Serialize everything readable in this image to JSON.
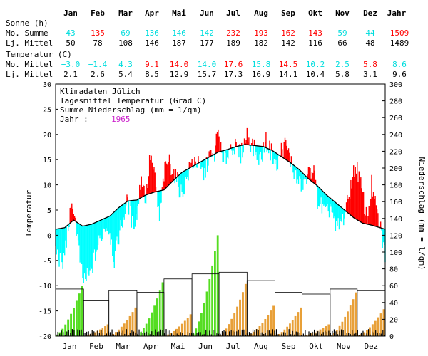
{
  "colors": {
    "above": "#ff0000",
    "below": "#00ffff",
    "precip_low": "#e8a038",
    "precip_high": "#55dd22",
    "daily_precip": "#000000",
    "year_label": "#cc22cc",
    "text": "#000000"
  },
  "header": {
    "months": [
      "Jan",
      "Feb",
      "Mar",
      "Apr",
      "Mai",
      "Jun",
      "Jul",
      "Aug",
      "Sep",
      "Okt",
      "Nov",
      "Dez"
    ],
    "year_col": "Jahr",
    "sun_title": "Sonne (h)",
    "sun_month_label": "Mo. Summe",
    "sun_month": [
      "43",
      "135",
      "69",
      "136",
      "146",
      "142",
      "232",
      "193",
      "162",
      "143",
      "59",
      "44"
    ],
    "sun_month_total": "1509",
    "sun_month_colors": [
      "#00dddd",
      "#ff0000",
      "#00dddd",
      "#00dddd",
      "#00dddd",
      "#00dddd",
      "#ff0000",
      "#ff0000",
      "#ff0000",
      "#ff0000",
      "#00dddd",
      "#00dddd"
    ],
    "sun_year_color": "#ff0000",
    "sun_mean_label": "Lj. Mittel",
    "sun_mean": [
      "50",
      "78",
      "108",
      "146",
      "187",
      "177",
      "189",
      "182",
      "142",
      "116",
      "66",
      "48"
    ],
    "sun_mean_total": "1489",
    "temp_title": "Temperatur (C)",
    "temp_month_label": "Mo. Mittel",
    "temp_month": [
      "−3.0",
      "−1.4",
      "4.3",
      "9.1",
      "14.0",
      "14.0",
      "17.6",
      "15.8",
      "14.5",
      "10.2",
      "2.5",
      "5.8"
    ],
    "temp_month_total": "8.6",
    "temp_month_colors": [
      "#00dddd",
      "#00dddd",
      "#00dddd",
      "#ff0000",
      "#ff0000",
      "#00dddd",
      "#ff0000",
      "#00dddd",
      "#ff0000",
      "#00dddd",
      "#00dddd",
      "#ff0000"
    ],
    "temp_year_color": "#00dddd",
    "temp_mean_label": "Lj. Mittel",
    "temp_mean": [
      "2.1",
      "2.6",
      "5.4",
      "8.5",
      "12.9",
      "15.7",
      "17.3",
      "16.9",
      "14.1",
      "10.4",
      "5.8",
      "3.1"
    ],
    "temp_mean_total": "9.6"
  },
  "chart_data": {
    "type": "area",
    "legend": {
      "line1": "Klimadaten Jülich",
      "line2": "Tagesmittel Temperatur (Grad C)",
      "line3": "Summe Niederschlag (mm = l/qm)",
      "year_label": "Jahr :",
      "year": "1965"
    },
    "ylabel_left": "Temperatur",
    "ylabel_right": "Niederschlag (mm = l/qm)",
    "ylim_left": [
      -20,
      30
    ],
    "ylim_right": [
      0,
      300
    ],
    "yticks_left": [
      30,
      25,
      20,
      15,
      10,
      5,
      0,
      -5,
      -10,
      -15,
      -20
    ],
    "yticks_right": [
      300,
      280,
      260,
      240,
      220,
      200,
      180,
      160,
      140,
      120,
      100,
      80,
      60,
      40,
      20,
      0
    ],
    "xlabels": [
      "Jan",
      "Feb",
      "Mar",
      "Apr",
      "Mai",
      "Jun",
      "Jul",
      "Aug",
      "Sep",
      "Okt",
      "Nov",
      "Dez"
    ],
    "long_term_temp_anchors": [
      [
        0,
        1.2
      ],
      [
        10,
        1.5
      ],
      [
        20,
        3.0
      ],
      [
        30,
        1.8
      ],
      [
        40,
        2.2
      ],
      [
        50,
        3.0
      ],
      [
        60,
        3.8
      ],
      [
        70,
        5.5
      ],
      [
        80,
        6.8
      ],
      [
        90,
        7.0
      ],
      [
        100,
        8.0
      ],
      [
        110,
        8.6
      ],
      [
        120,
        9.0
      ],
      [
        130,
        10.8
      ],
      [
        140,
        12.5
      ],
      [
        150,
        13.5
      ],
      [
        160,
        14.5
      ],
      [
        170,
        15.5
      ],
      [
        180,
        16.5
      ],
      [
        190,
        17.0
      ],
      [
        200,
        17.6
      ],
      [
        210,
        18.0
      ],
      [
        220,
        17.8
      ],
      [
        230,
        17.6
      ],
      [
        240,
        16.8
      ],
      [
        250,
        15.6
      ],
      [
        260,
        14.4
      ],
      [
        270,
        13.0
      ],
      [
        280,
        11.2
      ],
      [
        290,
        9.8
      ],
      [
        300,
        8.0
      ],
      [
        310,
        6.5
      ],
      [
        320,
        5.0
      ],
      [
        330,
        3.5
      ],
      [
        340,
        2.4
      ],
      [
        350,
        2.0
      ],
      [
        365,
        1.2
      ]
    ],
    "daily_temp_anchors": [
      [
        0,
        -3
      ],
      [
        8,
        -6
      ],
      [
        15,
        3
      ],
      [
        20,
        6
      ],
      [
        25,
        -2
      ],
      [
        30,
        -9
      ],
      [
        38,
        -8
      ],
      [
        45,
        -3
      ],
      [
        55,
        2
      ],
      [
        60,
        1
      ],
      [
        65,
        -5
      ],
      [
        70,
        0
      ],
      [
        80,
        7
      ],
      [
        85,
        2
      ],
      [
        90,
        4
      ],
      [
        95,
        12
      ],
      [
        100,
        7
      ],
      [
        105,
        16
      ],
      [
        110,
        11
      ],
      [
        115,
        3
      ],
      [
        120,
        12
      ],
      [
        125,
        15
      ],
      [
        130,
        13
      ],
      [
        140,
        8
      ],
      [
        150,
        14
      ],
      [
        155,
        15
      ],
      [
        160,
        13
      ],
      [
        165,
        12
      ],
      [
        170,
        16
      ],
      [
        175,
        15
      ],
      [
        180,
        21
      ],
      [
        185,
        14
      ],
      [
        195,
        18
      ],
      [
        205,
        16
      ],
      [
        212,
        20
      ],
      [
        220,
        17
      ],
      [
        228,
        15
      ],
      [
        232,
        19
      ],
      [
        240,
        16
      ],
      [
        245,
        13
      ],
      [
        250,
        17
      ],
      [
        255,
        18
      ],
      [
        260,
        15
      ],
      [
        265,
        12
      ],
      [
        270,
        10
      ],
      [
        278,
        11
      ],
      [
        285,
        14
      ],
      [
        290,
        7
      ],
      [
        300,
        4
      ],
      [
        305,
        6
      ],
      [
        310,
        1
      ],
      [
        318,
        3
      ],
      [
        323,
        6
      ],
      [
        328,
        11
      ],
      [
        333,
        14
      ],
      [
        340,
        8
      ],
      [
        345,
        3
      ],
      [
        350,
        10
      ],
      [
        355,
        5
      ],
      [
        360,
        1
      ],
      [
        365,
        -4
      ]
    ],
    "monthly_precip_longterm": [
      56,
      42,
      54,
      52,
      68,
      74,
      76,
      66,
      52,
      50,
      56,
      54
    ],
    "monthly_precip_1965": [
      60,
      14,
      34,
      64,
      26,
      120,
      62,
      36,
      34,
      14,
      52,
      32
    ]
  }
}
